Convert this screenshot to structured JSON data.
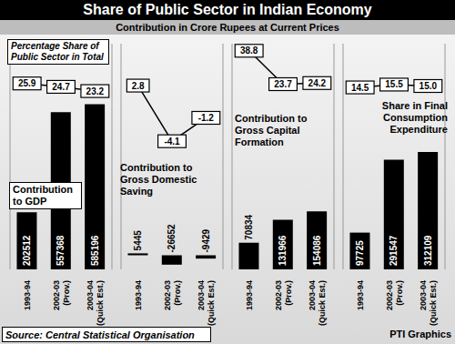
{
  "title": "Share of Public Sector in Indian Economy",
  "subtitle": "Contribution in Crore Rupees at Current Prices",
  "source": "Source: Central Statistical Organisation",
  "credit": "PTI Graphics",
  "chart_data": [
    {
      "type": "bar",
      "categories": [
        "1993-94",
        "2002-03 (Prov.)",
        "2003-04 (Quick Est.)"
      ],
      "data_labels": true,
      "tick_labels": "x",
      "ylim": [
        0,
        800000
      ],
      "y2lim": [
        -40,
        40
      ],
      "series": [
        {
          "name": "Contribution to GDP",
          "type": "bar",
          "color": "#000000",
          "values": [
            202512,
            557368,
            585196
          ]
        },
        {
          "name": "Percentage Share of Public Sector in Total",
          "type": "line",
          "axis": "y2",
          "color": "#000000",
          "values": [
            25.9,
            24.7,
            23.2
          ]
        }
      ]
    },
    {
      "type": "bar",
      "categories": [
        "1993-94",
        "2002-03 (Prov.)",
        "2003-04 (Quick Est.)"
      ],
      "data_labels": true,
      "tick_labels": "x",
      "ylim": [
        -40000,
        600000
      ],
      "y2lim": [
        -20,
        8
      ],
      "series": [
        {
          "name": "Contribution to Gross Domestic Saving",
          "type": "bar",
          "color": "#000000",
          "values": [
            5445,
            -26652,
            -9429
          ]
        },
        {
          "type": "line",
          "axis": "y2",
          "color": "#000000",
          "values": [
            2.8,
            -4.1,
            -1.2
          ]
        }
      ]
    },
    {
      "type": "bar",
      "categories": [
        "1993-94",
        "2002-03 (Prov.)",
        "2003-04 (Quick Est.)"
      ],
      "data_labels": true,
      "tick_labels": "x",
      "ylim": [
        0,
        600000
      ],
      "y2lim": [
        -60,
        42
      ],
      "series": [
        {
          "name": "Contribution to Gross Capital Formation",
          "type": "bar",
          "color": "#000000",
          "values": [
            70834,
            131966,
            154086
          ]
        },
        {
          "type": "line",
          "axis": "y2",
          "color": "#000000",
          "values": [
            38.8,
            23.7,
            24.2
          ]
        }
      ]
    },
    {
      "type": "bar",
      "categories": [
        "1993-94",
        "2002-03 (Prov.)",
        "2003-04 (Quick Est.)"
      ],
      "data_labels": true,
      "tick_labels": "x",
      "ylim": [
        0,
        600000
      ],
      "y2lim": [
        -50,
        30
      ],
      "series": [
        {
          "name": "Share in Final Consumption Expenditure",
          "type": "bar",
          "color": "#000000",
          "values": [
            97725,
            291547,
            312109
          ]
        },
        {
          "type": "line",
          "axis": "y2",
          "color": "#000000",
          "values": [
            14.5,
            15.5,
            15.0
          ],
          "value_labels": [
            "14.5",
            "15.5",
            "15.0"
          ]
        }
      ]
    }
  ]
}
